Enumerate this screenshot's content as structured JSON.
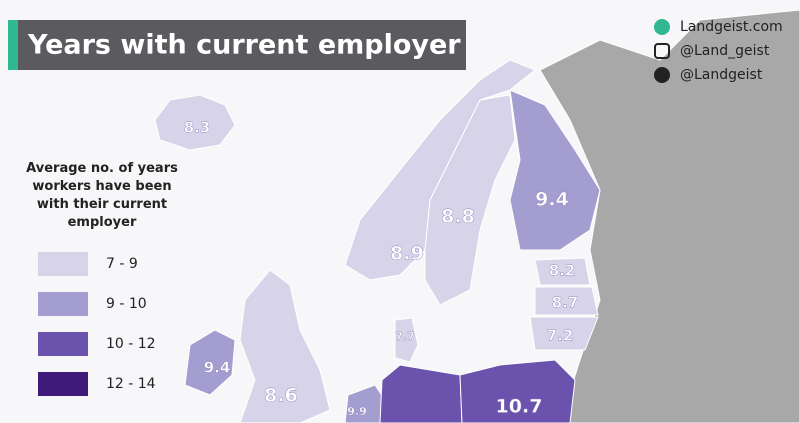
{
  "header": {
    "title": "Years with current employer"
  },
  "credits": [
    "Landgeist.com",
    "@Land_geist",
    "@Landgeist"
  ],
  "legend": {
    "title_lines": [
      "Average no. of years",
      "workers have been",
      "with their current",
      "employer"
    ],
    "items": [
      {
        "label": "7 - 9",
        "color": "#d7d4ea"
      },
      {
        "label": "9 - 10",
        "color": "#a39dd0"
      },
      {
        "label": "10 - 12",
        "color": "#6b52ad"
      },
      {
        "label": "12 - 14",
        "color": "#3f1a7a"
      }
    ]
  },
  "regions": [
    {
      "label": "8.3"
    },
    {
      "label": "9.4"
    },
    {
      "label": "8.8"
    },
    {
      "label": "8.9"
    },
    {
      "label": "8.2"
    },
    {
      "label": "8.7"
    },
    {
      "label": "7.2"
    },
    {
      "label": "7.7"
    },
    {
      "label": "9.4"
    },
    {
      "label": "8.6"
    },
    {
      "label": "9.9"
    },
    {
      "label": "10.7"
    }
  ]
}
